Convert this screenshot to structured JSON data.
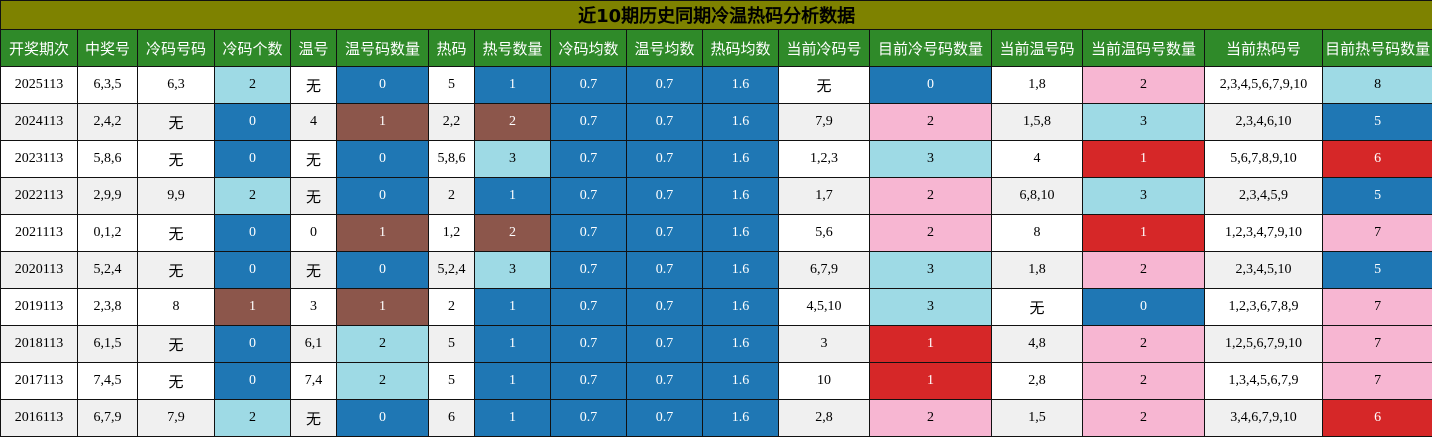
{
  "title": "近10期历史同期冷温热码分析数据",
  "columns": [
    "开奖期次",
    "中奖号",
    "冷码号码",
    "冷码个数",
    "温号",
    "温号码数量",
    "热码",
    "热号数量",
    "冷码均数",
    "温号均数",
    "热码均数",
    "当前冷码号",
    "目前冷号码数量",
    "当前温号码",
    "当前温码号数量",
    "当前热码号",
    "目前热号码数量"
  ],
  "colors": {
    "title_bg": "#7e8200",
    "header_bg": "#2f8a29",
    "blue": "#1f77b4",
    "lightblue": "#9edae5",
    "brown": "#8c564b",
    "pink": "#f7b6d2",
    "red": "#d62728"
  },
  "rows": [
    {
      "cells": [
        "2025113",
        "6,3,5",
        "6,3",
        "2",
        "无",
        "0",
        "5",
        "1",
        "0.7",
        "0.7",
        "1.6",
        "无",
        "0",
        "1,8",
        "2",
        "2,3,4,5,6,7,9,10",
        "8"
      ],
      "colors": [
        "",
        "",
        "",
        "lightblue",
        "",
        "blue",
        "",
        "blue",
        "blue",
        "blue",
        "blue",
        "",
        "blue",
        "",
        "pink",
        "",
        "lightblue"
      ]
    },
    {
      "cells": [
        "2024113",
        "2,4,2",
        "无",
        "0",
        "4",
        "1",
        "2,2",
        "2",
        "0.7",
        "0.7",
        "1.6",
        "7,9",
        "2",
        "1,5,8",
        "3",
        "2,3,4,6,10",
        "5"
      ],
      "colors": [
        "",
        "",
        "",
        "blue",
        "",
        "brown",
        "",
        "brown",
        "blue",
        "blue",
        "blue",
        "",
        "pink",
        "",
        "lightblue",
        "",
        "blue"
      ]
    },
    {
      "cells": [
        "2023113",
        "5,8,6",
        "无",
        "0",
        "无",
        "0",
        "5,8,6",
        "3",
        "0.7",
        "0.7",
        "1.6",
        "1,2,3",
        "3",
        "4",
        "1",
        "5,6,7,8,9,10",
        "6"
      ],
      "colors": [
        "",
        "",
        "",
        "blue",
        "",
        "blue",
        "",
        "lightblue",
        "blue",
        "blue",
        "blue",
        "",
        "lightblue",
        "",
        "red",
        "",
        "red"
      ]
    },
    {
      "cells": [
        "2022113",
        "2,9,9",
        "9,9",
        "2",
        "无",
        "0",
        "2",
        "1",
        "0.7",
        "0.7",
        "1.6",
        "1,7",
        "2",
        "6,8,10",
        "3",
        "2,3,4,5,9",
        "5"
      ],
      "colors": [
        "",
        "",
        "",
        "lightblue",
        "",
        "blue",
        "",
        "blue",
        "blue",
        "blue",
        "blue",
        "",
        "pink",
        "",
        "lightblue",
        "",
        "blue"
      ]
    },
    {
      "cells": [
        "2021113",
        "0,1,2",
        "无",
        "0",
        "0",
        "1",
        "1,2",
        "2",
        "0.7",
        "0.7",
        "1.6",
        "5,6",
        "2",
        "8",
        "1",
        "1,2,3,4,7,9,10",
        "7"
      ],
      "colors": [
        "",
        "",
        "",
        "blue",
        "",
        "brown",
        "",
        "brown",
        "blue",
        "blue",
        "blue",
        "",
        "pink",
        "",
        "red",
        "",
        "pink"
      ]
    },
    {
      "cells": [
        "2020113",
        "5,2,4",
        "无",
        "0",
        "无",
        "0",
        "5,2,4",
        "3",
        "0.7",
        "0.7",
        "1.6",
        "6,7,9",
        "3",
        "1,8",
        "2",
        "2,3,4,5,10",
        "5"
      ],
      "colors": [
        "",
        "",
        "",
        "blue",
        "",
        "blue",
        "",
        "lightblue",
        "blue",
        "blue",
        "blue",
        "",
        "lightblue",
        "",
        "pink",
        "",
        "blue"
      ]
    },
    {
      "cells": [
        "2019113",
        "2,3,8",
        "8",
        "1",
        "3",
        "1",
        "2",
        "1",
        "0.7",
        "0.7",
        "1.6",
        "4,5,10",
        "3",
        "无",
        "0",
        "1,2,3,6,7,8,9",
        "7"
      ],
      "colors": [
        "",
        "",
        "",
        "brown",
        "",
        "brown",
        "",
        "blue",
        "blue",
        "blue",
        "blue",
        "",
        "lightblue",
        "",
        "blue",
        "",
        "pink"
      ]
    },
    {
      "cells": [
        "2018113",
        "6,1,5",
        "无",
        "0",
        "6,1",
        "2",
        "5",
        "1",
        "0.7",
        "0.7",
        "1.6",
        "3",
        "1",
        "4,8",
        "2",
        "1,2,5,6,7,9,10",
        "7"
      ],
      "colors": [
        "",
        "",
        "",
        "blue",
        "",
        "lightblue",
        "",
        "blue",
        "blue",
        "blue",
        "blue",
        "",
        "red",
        "",
        "pink",
        "",
        "pink"
      ]
    },
    {
      "cells": [
        "2017113",
        "7,4,5",
        "无",
        "0",
        "7,4",
        "2",
        "5",
        "1",
        "0.7",
        "0.7",
        "1.6",
        "10",
        "1",
        "2,8",
        "2",
        "1,3,4,5,6,7,9",
        "7"
      ],
      "colors": [
        "",
        "",
        "",
        "blue",
        "",
        "lightblue",
        "",
        "blue",
        "blue",
        "blue",
        "blue",
        "",
        "red",
        "",
        "pink",
        "",
        "pink"
      ]
    },
    {
      "cells": [
        "2016113",
        "6,7,9",
        "7,9",
        "2",
        "无",
        "0",
        "6",
        "1",
        "0.7",
        "0.7",
        "1.6",
        "2,8",
        "2",
        "1,5",
        "2",
        "3,4,6,7,9,10",
        "6"
      ],
      "colors": [
        "",
        "",
        "",
        "lightblue",
        "",
        "blue",
        "",
        "blue",
        "blue",
        "blue",
        "blue",
        "",
        "pink",
        "",
        "pink",
        "",
        "red"
      ]
    }
  ]
}
